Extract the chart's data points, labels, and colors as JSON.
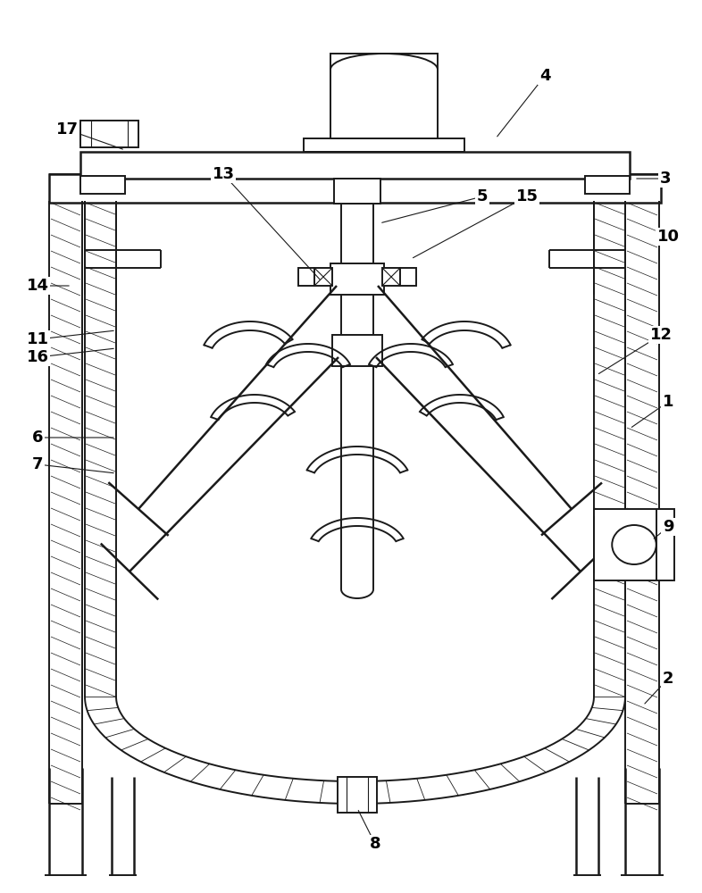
{
  "bg_color": "#ffffff",
  "line_color": "#1a1a1a",
  "lw": 1.4,
  "lw_thin": 0.8,
  "lw_thick": 1.8,
  "fig_width": 7.86,
  "fig_height": 10.0
}
